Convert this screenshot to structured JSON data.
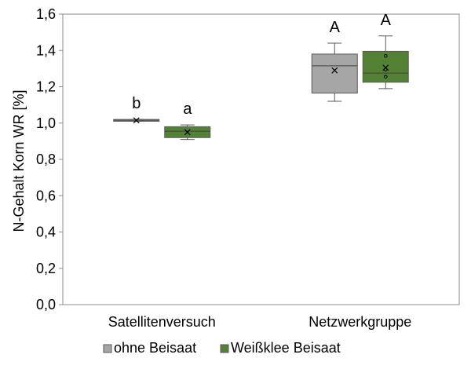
{
  "chart_data": {
    "type": "boxplot",
    "ylabel": "N-Gehalt Korn WR [%]",
    "ylim": [
      0.0,
      1.6
    ],
    "yticks": [
      "0,0",
      "0,2",
      "0,4",
      "0,6",
      "0,8",
      "1,0",
      "1,2",
      "1,4",
      "1,6"
    ],
    "categories": [
      "Satellitenversuch",
      "Netzwerkgruppe"
    ],
    "grid": false,
    "legend_position": "bottom",
    "series": [
      {
        "name": "ohne Beisaat",
        "color": "#a6a6a6",
        "boxes": [
          {
            "category": "Satellitenversuch",
            "min": 1.01,
            "q1": 1.01,
            "median": 1.015,
            "q3": 1.02,
            "max": 1.02,
            "mean": 1.015,
            "outliers": [],
            "letter": "b"
          },
          {
            "category": "Netzwerkgruppe",
            "min": 1.12,
            "q1": 1.165,
            "median": 1.315,
            "q3": 1.38,
            "max": 1.44,
            "mean": 1.29,
            "outliers": [],
            "letter": "A"
          }
        ]
      },
      {
        "name": "Weißklee Beisaat",
        "color": "#548235",
        "boxes": [
          {
            "category": "Satellitenversuch",
            "min": 0.91,
            "q1": 0.92,
            "median": 0.955,
            "q3": 0.98,
            "max": 0.99,
            "mean": 0.95,
            "outliers": [],
            "letter": "a"
          },
          {
            "category": "Netzwerkgruppe",
            "min": 1.19,
            "q1": 1.225,
            "median": 1.275,
            "q3": 1.395,
            "max": 1.48,
            "mean": 1.305,
            "outliers": [
              1.255,
              1.295,
              1.37
            ],
            "letter": "A"
          }
        ]
      }
    ]
  }
}
